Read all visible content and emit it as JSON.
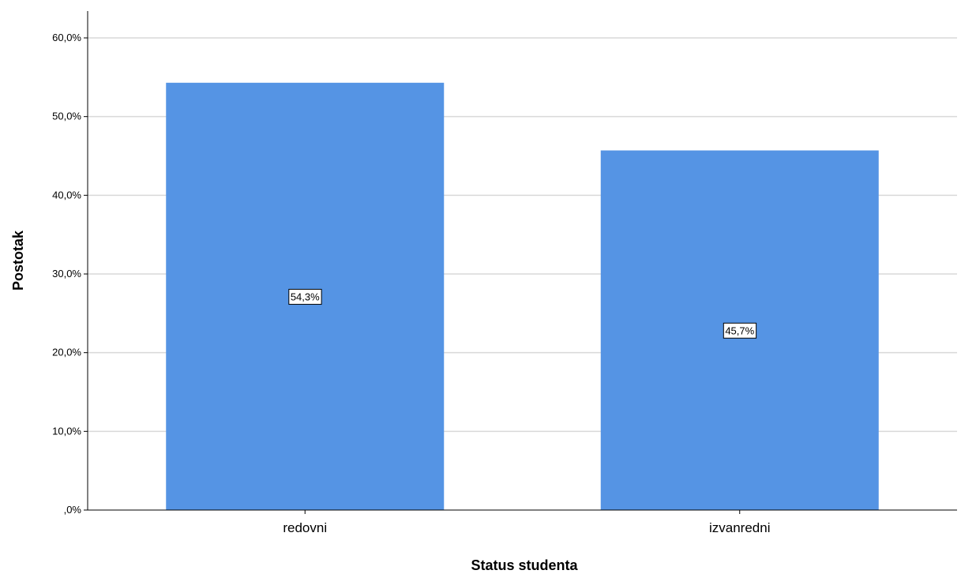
{
  "chart_data": {
    "type": "bar",
    "categories": [
      "redovni",
      "izvanredni"
    ],
    "values": [
      54.3,
      45.7
    ],
    "data_labels": [
      "54,3%",
      "45,7%"
    ],
    "title": "",
    "xlabel": "Status studenta",
    "ylabel": "Postotak",
    "ylim": [
      0,
      60
    ],
    "yticks": [
      0,
      10,
      20,
      30,
      40,
      50,
      60
    ],
    "ytick_labels": [
      ",0%",
      "10,0%",
      "20,0%",
      "30,0%",
      "40,0%",
      "50,0%",
      "60,0%"
    ],
    "grid": true,
    "legend": "none",
    "colors": {
      "bar": "#5594E4",
      "grid": "#D9D9D9",
      "axis": "#000000"
    }
  }
}
